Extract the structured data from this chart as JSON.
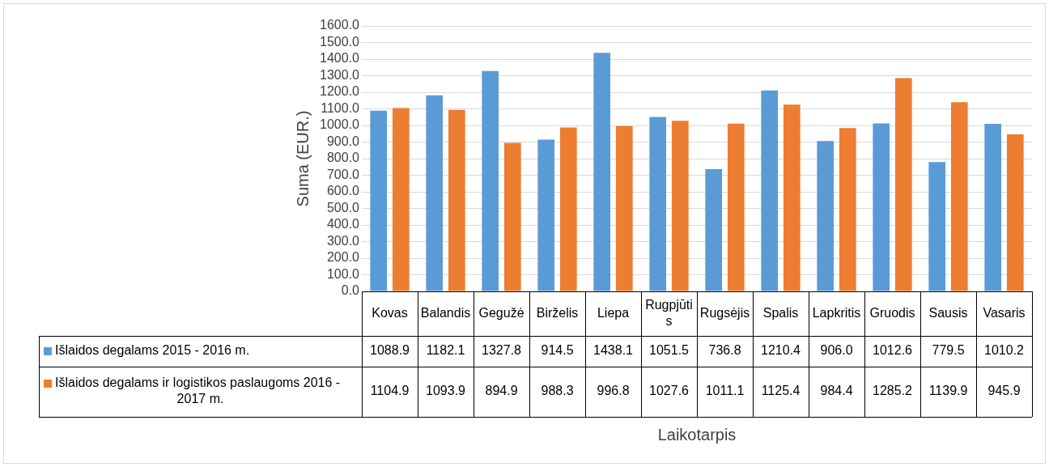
{
  "chart_data": {
    "type": "bar",
    "ylabel": "Suma (EUR.)",
    "annotations": [
      "Laikotarpis"
    ],
    "categories": [
      "Kovas",
      "Balandis",
      "Gegužė",
      "Birželis",
      "Liepa",
      "Rugpjūtis",
      "Rugsėjis",
      "Spalis",
      "Lapkritis",
      "Gruodis",
      "Sausis",
      "Vasaris"
    ],
    "series": [
      {
        "name": "Išlaidos degalams 2015 - 2016 m.",
        "color": "#5b9bd5",
        "values": [
          1088.9,
          1182.1,
          1327.8,
          914.5,
          1438.1,
          1051.5,
          736.8,
          1210.4,
          906,
          1012.6,
          779.5,
          1010.2
        ],
        "value_labels": [
          "1088.9",
          "1182.1",
          "1327.8",
          "914.5",
          "1438.1",
          "1051.5",
          "736.8",
          "1210.4",
          "906.0",
          "1012.6",
          "779.5",
          "1010.2"
        ]
      },
      {
        "name": "Išlaidos degalams ir logistikos paslaugoms 2016 - 2017 m.",
        "color": "#ed7d31",
        "values": [
          1104.9,
          1093.9,
          894.9,
          988.3,
          996.8,
          1027.6,
          1011.1,
          1125.4,
          984.4,
          1285.2,
          1139.9,
          945.9
        ],
        "value_labels": [
          "1104.9",
          "1093.9",
          "894.9",
          "988.3",
          "996.8",
          "1027.6",
          "1011.1",
          "1125.4",
          "984.4",
          "1285.2",
          "1139.9",
          "945.9"
        ]
      }
    ],
    "ylim": [
      0,
      1600
    ],
    "yticks": [
      {
        "value": 0,
        "label": "0.0"
      },
      {
        "value": 100,
        "label": "100.0"
      },
      {
        "value": 200,
        "label": "200.0"
      },
      {
        "value": 300,
        "label": "300.0"
      },
      {
        "value": 400,
        "label": "400.0"
      },
      {
        "value": 500,
        "label": "500.0"
      },
      {
        "value": 600,
        "label": "600.0"
      },
      {
        "value": 700,
        "label": "700.0"
      },
      {
        "value": 800,
        "label": "800.0"
      },
      {
        "value": 900,
        "label": "900.0"
      },
      {
        "value": 1000,
        "label": "1000.0"
      },
      {
        "value": 1100,
        "label": "1100.0"
      },
      {
        "value": 1200,
        "label": "1200.0"
      },
      {
        "value": 1300,
        "label": "1300.0"
      },
      {
        "value": 1400,
        "label": "1400.0"
      },
      {
        "value": 1500,
        "label": "1500.0"
      },
      {
        "value": 1600,
        "label": "1600.0"
      }
    ],
    "grid": "y",
    "legend": "bottom"
  }
}
